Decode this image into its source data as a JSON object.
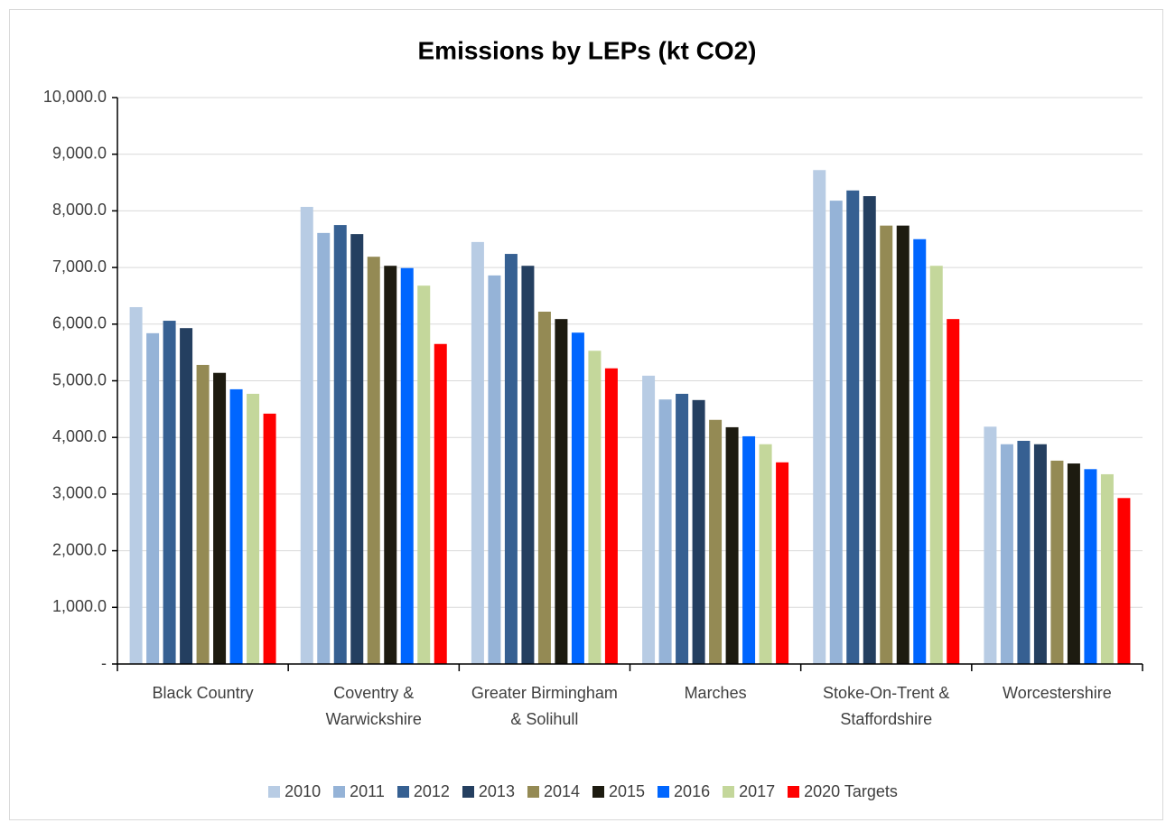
{
  "chart_data": {
    "type": "bar",
    "title": "Emissions by LEPs (kt CO2)",
    "categories": [
      "Black Country",
      "Coventry & Warwickshire",
      "Greater Birmingham & Solihull",
      "Marches",
      "Stoke-On-Trent & Staffordshire",
      "Worcestershire"
    ],
    "series": [
      {
        "name": "2010",
        "color": "#b8cce4",
        "values": [
          6300,
          8070,
          7450,
          5090,
          8720,
          4190
        ]
      },
      {
        "name": "2011",
        "color": "#95b3d7",
        "values": [
          5840,
          7610,
          6860,
          4670,
          8180,
          3880
        ]
      },
      {
        "name": "2012",
        "color": "#366092",
        "values": [
          6060,
          7750,
          7240,
          4770,
          8360,
          3940
        ]
      },
      {
        "name": "2013",
        "color": "#243f60",
        "values": [
          5930,
          7590,
          7030,
          4660,
          8260,
          3880
        ]
      },
      {
        "name": "2014",
        "color": "#948a54",
        "values": [
          5280,
          7190,
          6220,
          4310,
          7740,
          3590
        ]
      },
      {
        "name": "2015",
        "color": "#1d1b10",
        "values": [
          5140,
          7030,
          6090,
          4180,
          7740,
          3540
        ]
      },
      {
        "name": "2016",
        "color": "#0066ff",
        "values": [
          4850,
          6990,
          5850,
          4020,
          7500,
          3440
        ]
      },
      {
        "name": "2017",
        "color": "#c4d79b",
        "values": [
          4770,
          6680,
          5530,
          3880,
          7030,
          3350
        ]
      },
      {
        "name": "2020 Targets",
        "color": "#ff0000",
        "values": [
          4420,
          5650,
          5220,
          3560,
          6090,
          2930
        ]
      }
    ],
    "ylim": [
      0,
      10000
    ],
    "yticks": [
      {
        "value": 0,
        "label": "-"
      },
      {
        "value": 1000,
        "label": "1,000.0"
      },
      {
        "value": 2000,
        "label": "2,000.0"
      },
      {
        "value": 3000,
        "label": "3,000.0"
      },
      {
        "value": 4000,
        "label": "4,000.0"
      },
      {
        "value": 5000,
        "label": "5,000.0"
      },
      {
        "value": 6000,
        "label": "6,000.0"
      },
      {
        "value": 7000,
        "label": "7,000.0"
      },
      {
        "value": 8000,
        "label": "8,000.0"
      },
      {
        "value": 9000,
        "label": "9,000.0"
      },
      {
        "value": 10000,
        "label": "10,000.0"
      }
    ],
    "grid": true,
    "legend": "bottom"
  }
}
